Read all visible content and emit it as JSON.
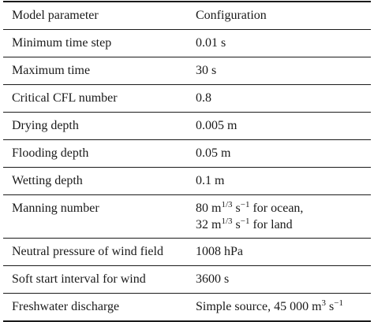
{
  "header": {
    "col1": "Model parameter",
    "col2": "Configuration"
  },
  "rows": [
    {
      "param": "Minimum time step",
      "value": "0.01 s"
    },
    {
      "param": "Maximum time",
      "value": "30 s"
    },
    {
      "param": "Critical CFL number",
      "value": "0.8"
    },
    {
      "param": "Drying depth",
      "value": "0.005 m"
    },
    {
      "param": "Flooding depth",
      "value": "0.05 m"
    },
    {
      "param": "Wetting depth",
      "value": "0.1 m"
    },
    {
      "param": "Manning number",
      "value_line1_num": "80 m",
      "value_line1_exp1": "1/3",
      "value_line1_mid": " s",
      "value_line1_exp2": "−1",
      "value_line1_tail": " for ocean,",
      "value_line2_num": "32 m",
      "value_line2_exp1": "1/3",
      "value_line2_mid": " s",
      "value_line2_exp2": "−1",
      "value_line2_tail": " for land"
    },
    {
      "param": "Neutral pressure of wind field",
      "value": "1008 hPa"
    },
    {
      "param": "Soft start interval for wind",
      "value": "3600 s"
    },
    {
      "param": "Freshwater discharge",
      "value_prefix": "Simple source, 45 000 m",
      "value_exp1": "3",
      "value_mid": " s",
      "value_exp2": "−1"
    }
  ]
}
